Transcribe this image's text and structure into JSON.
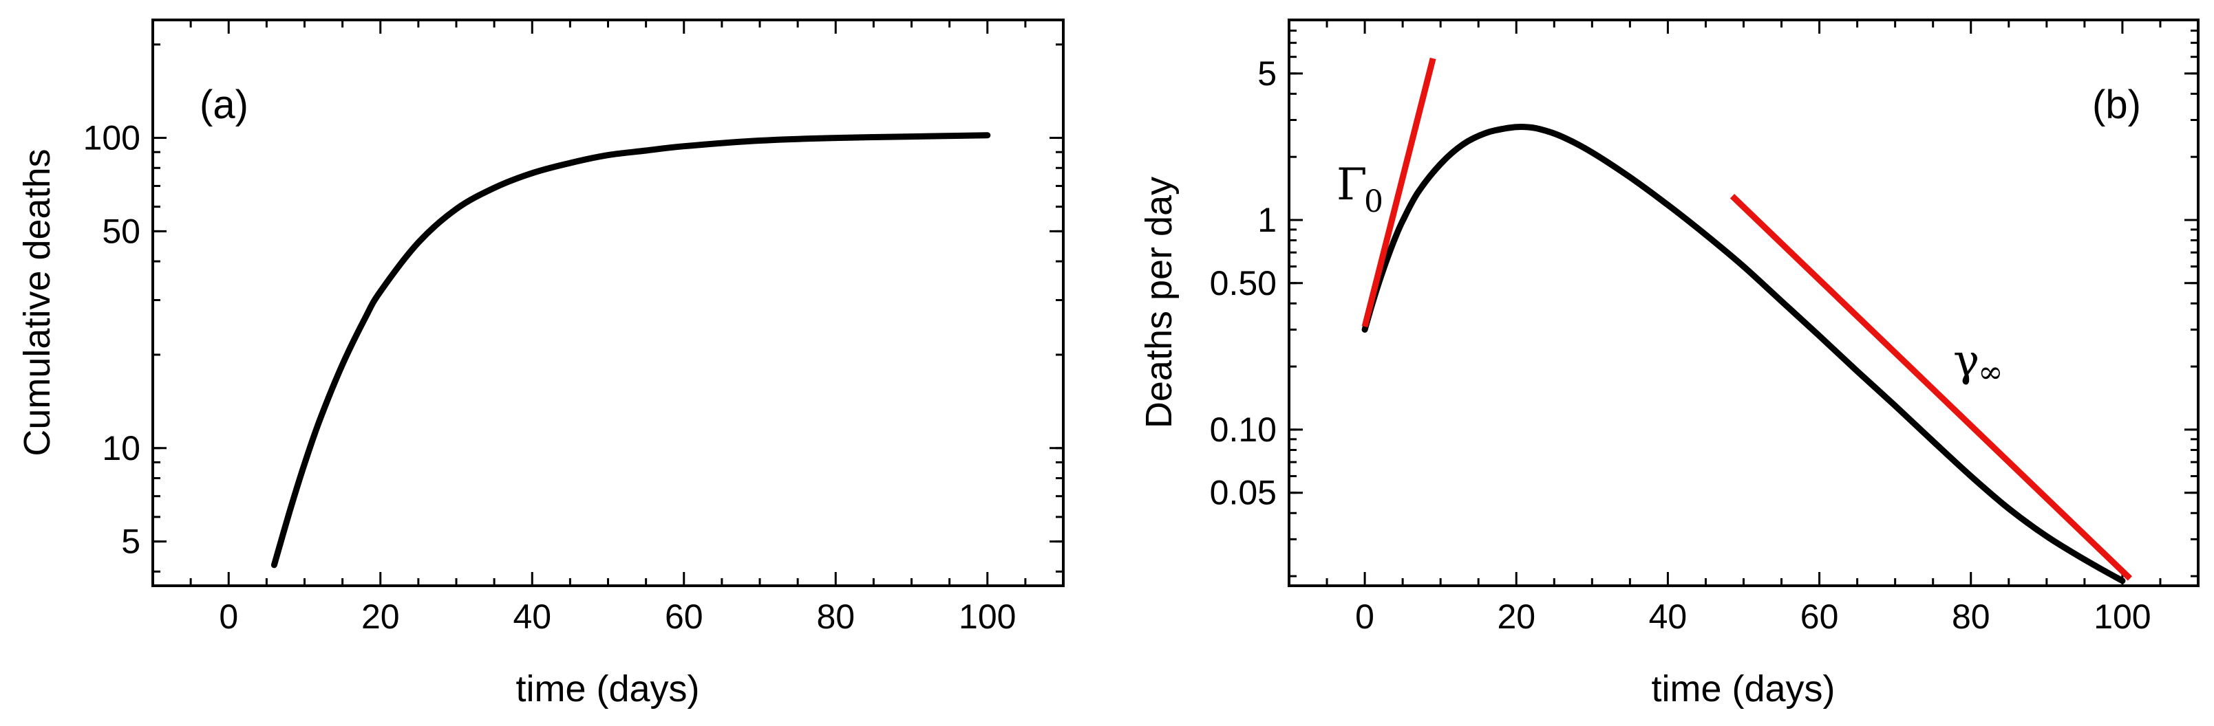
{
  "chart_data": [
    {
      "type": "line",
      "panel_label": "(a)",
      "xlabel": "time (days)",
      "ylabel": "Cumulative deaths",
      "yscale": "log",
      "xlim": [
        -10,
        110
      ],
      "ylim": [
        3.6,
        240
      ],
      "x_ticks": [
        0,
        20,
        40,
        60,
        80,
        100
      ],
      "y_ticks": [
        5,
        10,
        50,
        100
      ],
      "series": [
        {
          "color": "#000000",
          "x": [
            6,
            8,
            10,
            12,
            15,
            18,
            20,
            25,
            30,
            35,
            40,
            45,
            50,
            55,
            60,
            70,
            80,
            90,
            100
          ],
          "y": [
            4.2,
            6.2,
            8.9,
            12.3,
            18.6,
            26.3,
            32,
            46,
            59,
            69,
            77,
            83,
            88,
            91,
            94,
            98,
            100,
            101,
            102
          ]
        }
      ]
    },
    {
      "type": "line",
      "panel_label": "(b)",
      "xlabel": "time (days)",
      "ylabel": "Deaths per day",
      "yscale": "log",
      "xlim": [
        -10,
        110
      ],
      "ylim": [
        0.018,
        9
      ],
      "x_ticks": [
        0,
        20,
        40,
        60,
        80,
        100
      ],
      "y_ticks": [
        0.05,
        0.1,
        0.5,
        1,
        5
      ],
      "y_tick_labels": [
        "0.05",
        "0.10",
        "0.50",
        "1",
        "5"
      ],
      "annotations": [
        {
          "text": "Γ",
          "subscript": "0"
        },
        {
          "text": "γ",
          "subscript": "∞"
        }
      ],
      "series": [
        {
          "color": "#000000",
          "x": [
            0,
            1,
            2,
            3,
            4,
            5,
            7,
            10,
            13,
            16,
            19,
            21,
            23,
            26,
            30,
            35,
            40,
            45,
            50,
            55,
            60,
            65,
            70,
            75,
            80,
            85,
            90,
            95,
            100
          ],
          "y": [
            0.3,
            0.4,
            0.52,
            0.66,
            0.82,
            0.99,
            1.35,
            1.85,
            2.3,
            2.6,
            2.75,
            2.78,
            2.72,
            2.5,
            2.1,
            1.6,
            1.18,
            0.85,
            0.6,
            0.41,
            0.28,
            0.19,
            0.13,
            0.088,
            0.06,
            0.042,
            0.031,
            0.024,
            0.019
          ]
        },
        {
          "color": "#e8120e",
          "x": [
            0,
            9
          ],
          "y": [
            0.31,
            5.9
          ]
        },
        {
          "color": "#e8120e",
          "x": [
            48.5,
            101
          ],
          "y": [
            1.3,
            0.0195
          ]
        }
      ]
    }
  ]
}
